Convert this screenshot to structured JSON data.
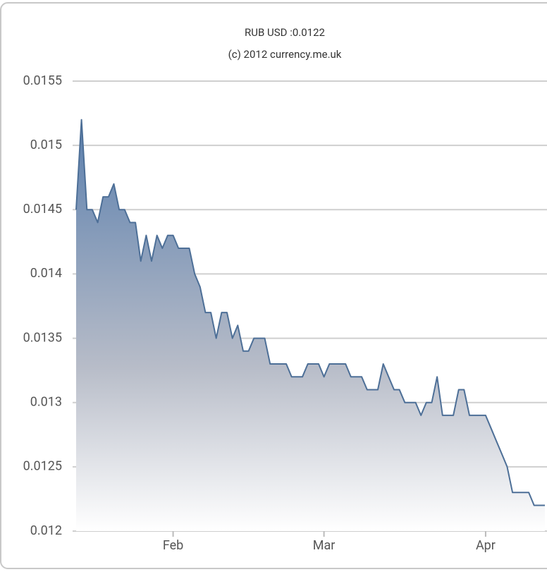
{
  "chart_data": {
    "type": "area",
    "title": "RUB USD :0.0122",
    "subtitle": "(c) 2012 currency.me.uk",
    "categories": [
      null,
      null,
      null,
      null,
      null,
      null,
      null,
      null,
      null,
      null,
      null,
      null,
      null,
      null,
      null,
      null,
      null,
      null,
      "Feb",
      null,
      null,
      null,
      null,
      null,
      null,
      null,
      null,
      null,
      null,
      null,
      null,
      null,
      null,
      null,
      null,
      null,
      null,
      null,
      null,
      null,
      null,
      null,
      null,
      null,
      null,
      null,
      "Mar",
      null,
      null,
      null,
      null,
      null,
      null,
      null,
      null,
      null,
      null,
      null,
      null,
      null,
      null,
      null,
      null,
      null,
      null,
      null,
      null,
      null,
      null,
      null,
      null,
      null,
      null,
      null,
      null,
      null,
      "Apr",
      null,
      null,
      null,
      null,
      null,
      null,
      null,
      null,
      null,
      null,
      null
    ],
    "values": [
      0.0145,
      0.0152,
      0.0145,
      0.0145,
      0.0144,
      0.0146,
      0.0146,
      0.0147,
      0.0145,
      0.0145,
      0.0144,
      0.0144,
      0.0141,
      0.0143,
      0.0141,
      0.0143,
      0.0142,
      0.0143,
      0.0143,
      0.0142,
      0.0142,
      0.0142,
      0.014,
      0.0139,
      0.0137,
      0.0137,
      0.0135,
      0.0137,
      0.0137,
      0.0135,
      0.0136,
      0.0134,
      0.0134,
      0.0135,
      0.0135,
      0.0135,
      0.0133,
      0.0133,
      0.0133,
      0.0133,
      0.0132,
      0.0132,
      0.0132,
      0.0133,
      0.0133,
      0.0133,
      0.0132,
      0.0133,
      0.0133,
      0.0133,
      0.0133,
      0.0132,
      0.0132,
      0.0132,
      0.0131,
      0.0131,
      0.0131,
      0.0133,
      0.0132,
      0.0131,
      0.0131,
      0.013,
      0.013,
      0.013,
      0.0129,
      0.013,
      0.013,
      0.0132,
      0.0129,
      0.0129,
      0.0129,
      0.0131,
      0.0131,
      0.0129,
      0.0129,
      0.0129,
      0.0129,
      0.0128,
      0.0127,
      0.0126,
      0.0125,
      0.0123,
      0.0123,
      0.0123,
      0.0123,
      0.0122,
      0.0122,
      0.0122
    ],
    "color": "#4d6f97",
    "ylim": [
      0.012,
      0.0155
    ],
    "yticks": [
      0.012,
      0.0125,
      0.013,
      0.0135,
      0.014,
      0.0145,
      0.015,
      0.0155
    ],
    "grid": true
  }
}
